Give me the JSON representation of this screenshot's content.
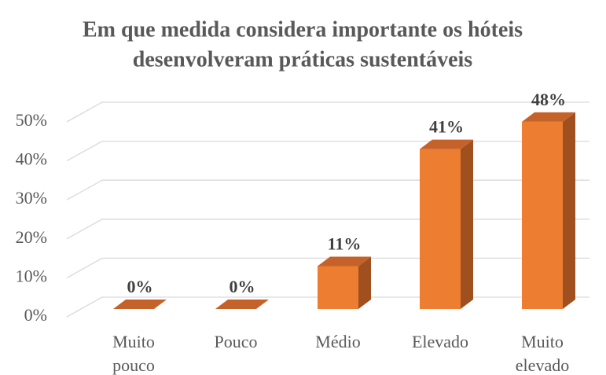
{
  "chart_data": {
    "type": "bar3d",
    "title": [
      "Em que medida considera importante os hóteis",
      "desenvolveram práticas sustentáveis"
    ],
    "categories": [
      "Muito pouco",
      "Pouco",
      "Médio",
      "Elevado",
      "Muito elevado"
    ],
    "values": [
      0,
      0,
      11,
      41,
      48
    ],
    "value_labels": [
      "0%",
      "0%",
      "11%",
      "41%",
      "48%"
    ],
    "color": "#ed7d31",
    "ylim": [
      0,
      50
    ],
    "yticks": [
      {
        "value": 0,
        "label": "0%"
      },
      {
        "value": 10,
        "label": "10%"
      },
      {
        "value": 20,
        "label": "20%"
      },
      {
        "value": 30,
        "label": "30%"
      },
      {
        "value": 40,
        "label": "40%"
      },
      {
        "value": 50,
        "label": "50%"
      }
    ],
    "grid": true
  }
}
